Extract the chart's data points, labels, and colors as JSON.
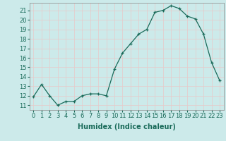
{
  "x": [
    0,
    1,
    2,
    3,
    4,
    5,
    6,
    7,
    8,
    9,
    10,
    11,
    12,
    13,
    14,
    15,
    16,
    17,
    18,
    19,
    20,
    21,
    22,
    23
  ],
  "y": [
    11.9,
    13.2,
    12.0,
    11.0,
    11.4,
    11.4,
    12.0,
    12.2,
    12.2,
    12.0,
    14.8,
    16.5,
    17.5,
    18.5,
    19.0,
    20.8,
    21.0,
    21.5,
    21.2,
    20.4,
    20.1,
    18.5,
    15.5,
    13.6
  ],
  "xlabel": "Humidex (Indice chaleur)",
  "xlim": [
    -0.5,
    23.5
  ],
  "ylim": [
    10.5,
    21.8
  ],
  "yticks": [
    11,
    12,
    13,
    14,
    15,
    16,
    17,
    18,
    19,
    20,
    21
  ],
  "xticks": [
    0,
    1,
    2,
    3,
    4,
    5,
    6,
    7,
    8,
    9,
    10,
    11,
    12,
    13,
    14,
    15,
    16,
    17,
    18,
    19,
    20,
    21,
    22,
    23
  ],
  "line_color": "#1a6b5a",
  "marker": "+",
  "bg_color": "#cceaea",
  "grid_color": "#e8c8c8",
  "label_fontsize": 7,
  "tick_fontsize": 6
}
